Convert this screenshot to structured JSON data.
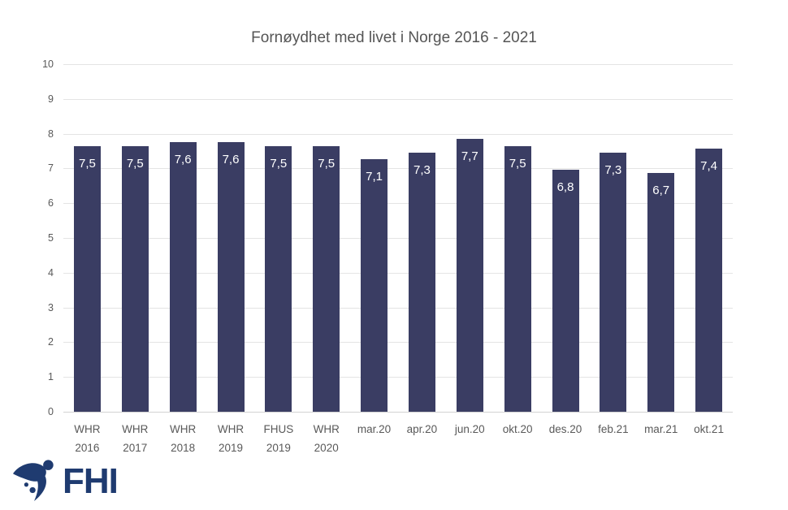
{
  "title": "Fornøydhet med livet i Norge 2016 - 2021",
  "chart_data": {
    "type": "bar",
    "title": "Fornøydhet med livet i Norge 2016 - 2021",
    "categories": [
      "WHR 2016",
      "WHR 2017",
      "WHR 2018",
      "WHR 2019",
      "FHUS 2019",
      "WHR 2020",
      "mar.20",
      "apr.20",
      "jun.20",
      "okt.20",
      "des.20",
      "feb.21",
      "mar.21",
      "okt.21"
    ],
    "category_lines": [
      [
        "WHR",
        "2016"
      ],
      [
        "WHR",
        "2017"
      ],
      [
        "WHR",
        "2018"
      ],
      [
        "WHR",
        "2019"
      ],
      [
        "FHUS",
        "2019"
      ],
      [
        "WHR",
        "2020"
      ],
      [
        "mar.20"
      ],
      [
        "apr.20"
      ],
      [
        "jun.20"
      ],
      [
        "okt.20"
      ],
      [
        "des.20"
      ],
      [
        "feb.21"
      ],
      [
        "mar.21"
      ],
      [
        "okt.21"
      ]
    ],
    "values": [
      7.5,
      7.5,
      7.6,
      7.6,
      7.5,
      7.5,
      7.1,
      7.3,
      7.7,
      7.5,
      6.8,
      7.3,
      6.7,
      7.4
    ],
    "value_labels": [
      "7,5",
      "7,5",
      "7,6",
      "7,6",
      "7,5",
      "7,5",
      "7,1",
      "7,3",
      "7,7",
      "7,5",
      "6,8",
      "7,3",
      "6,7",
      "7,4"
    ],
    "bar_heights_rendered": [
      7.63,
      7.63,
      7.76,
      7.76,
      7.63,
      7.63,
      7.27,
      7.45,
      7.85,
      7.63,
      6.96,
      7.45,
      6.87,
      7.57
    ],
    "xlabel": "",
    "ylabel": "",
    "ylim": [
      0,
      10
    ],
    "yticks": [
      0,
      1,
      2,
      3,
      4,
      5,
      6,
      7,
      8,
      9,
      10
    ],
    "grid": true,
    "legend": false,
    "colors": {
      "bar": "#3a3d63",
      "value_label": "#ffffff",
      "axis_text": "#595959",
      "title_text": "#555555",
      "gridline": "#e4e4e4",
      "axis_line": "#d2d2d2"
    }
  },
  "logo": {
    "text": "FHI",
    "color": "#1f3b70",
    "icon": "fhi-swoosh-icon"
  }
}
